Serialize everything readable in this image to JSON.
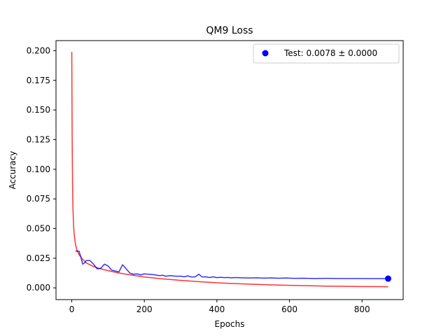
{
  "chart_data": {
    "type": "line",
    "title": "QM9 Loss",
    "xlabel": "Epochs",
    "ylabel": "Accuracy",
    "xlim": [
      -43.5,
      913.5
    ],
    "ylim": [
      -0.0099,
      0.2085
    ],
    "xticks": [
      0,
      200,
      400,
      600,
      800
    ],
    "yticks": [
      0.0,
      0.025,
      0.05,
      0.075,
      0.1,
      0.125,
      0.15,
      0.175,
      0.2
    ],
    "xtick_labels": [
      "0",
      "200",
      "400",
      "600",
      "800"
    ],
    "ytick_labels": [
      "0.000",
      "0.025",
      "0.050",
      "0.075",
      "0.100",
      "0.125",
      "0.150",
      "0.175",
      "0.200"
    ],
    "grid": false,
    "legend_position": "top-right",
    "legend": [
      {
        "label": "Test: 0.0078 ± 0.0000",
        "marker": "circle",
        "color": "#0000ff"
      }
    ],
    "series": [
      {
        "color": "#ff0000",
        "points": [
          [
            0,
            0.199
          ],
          [
            1,
            0.13
          ],
          [
            2,
            0.09
          ],
          [
            3,
            0.07
          ],
          [
            4,
            0.06
          ],
          [
            5,
            0.052
          ],
          [
            7,
            0.044
          ],
          [
            10,
            0.037
          ],
          [
            15,
            0.031
          ],
          [
            20,
            0.028
          ],
          [
            30,
            0.024
          ],
          [
            40,
            0.021
          ],
          [
            50,
            0.0195
          ],
          [
            60,
            0.018
          ],
          [
            80,
            0.016
          ],
          [
            100,
            0.0145
          ],
          [
            125,
            0.0128
          ],
          [
            150,
            0.0115
          ],
          [
            175,
            0.0103
          ],
          [
            200,
            0.0092
          ],
          [
            250,
            0.0076
          ],
          [
            300,
            0.0063
          ],
          [
            350,
            0.0052
          ],
          [
            400,
            0.0043
          ],
          [
            450,
            0.0036
          ],
          [
            500,
            0.003
          ],
          [
            550,
            0.0025
          ],
          [
            600,
            0.0021
          ],
          [
            650,
            0.0018
          ],
          [
            700,
            0.0015
          ],
          [
            750,
            0.0013
          ],
          [
            800,
            0.0011
          ],
          [
            850,
            0.001
          ],
          [
            872,
            0.0009
          ]
        ]
      },
      {
        "color": "#0000ff",
        "points": [
          [
            10,
            0.031
          ],
          [
            20,
            0.031
          ],
          [
            25,
            0.026
          ],
          [
            30,
            0.02
          ],
          [
            35,
            0.021
          ],
          [
            40,
            0.023
          ],
          [
            50,
            0.023
          ],
          [
            60,
            0.02
          ],
          [
            70,
            0.016
          ],
          [
            80,
            0.0165
          ],
          [
            90,
            0.02
          ],
          [
            100,
            0.0185
          ],
          [
            110,
            0.015
          ],
          [
            120,
            0.0142
          ],
          [
            130,
            0.0135
          ],
          [
            140,
            0.0195
          ],
          [
            150,
            0.016
          ],
          [
            160,
            0.0125
          ],
          [
            170,
            0.0115
          ],
          [
            180,
            0.0118
          ],
          [
            190,
            0.011
          ],
          [
            200,
            0.0118
          ],
          [
            210,
            0.0115
          ],
          [
            220,
            0.0113
          ],
          [
            230,
            0.011
          ],
          [
            240,
            0.0103
          ],
          [
            250,
            0.0106
          ],
          [
            260,
            0.0098
          ],
          [
            270,
            0.0103
          ],
          [
            280,
            0.01
          ],
          [
            290,
            0.0098
          ],
          [
            300,
            0.0099
          ],
          [
            310,
            0.0093
          ],
          [
            320,
            0.0101
          ],
          [
            330,
            0.0091
          ],
          [
            340,
            0.0093
          ],
          [
            350,
            0.0115
          ],
          [
            360,
            0.0091
          ],
          [
            370,
            0.0093
          ],
          [
            380,
            0.0087
          ],
          [
            390,
            0.0093
          ],
          [
            400,
            0.0086
          ],
          [
            410,
            0.0089
          ],
          [
            420,
            0.0086
          ],
          [
            430,
            0.0088
          ],
          [
            440,
            0.0085
          ],
          [
            450,
            0.0087
          ],
          [
            470,
            0.0085
          ],
          [
            490,
            0.0083
          ],
          [
            510,
            0.0085
          ],
          [
            530,
            0.0082
          ],
          [
            550,
            0.0084
          ],
          [
            570,
            0.0081
          ],
          [
            590,
            0.0083
          ],
          [
            610,
            0.008
          ],
          [
            640,
            0.0081
          ],
          [
            670,
            0.0079
          ],
          [
            700,
            0.008
          ],
          [
            740,
            0.0079
          ],
          [
            780,
            0.0079
          ],
          [
            820,
            0.0078
          ],
          [
            850,
            0.0078
          ],
          [
            872,
            0.0078
          ]
        ]
      }
    ],
    "test_point": {
      "x": 872,
      "y": 0.0078,
      "color": "#0000ff"
    }
  }
}
